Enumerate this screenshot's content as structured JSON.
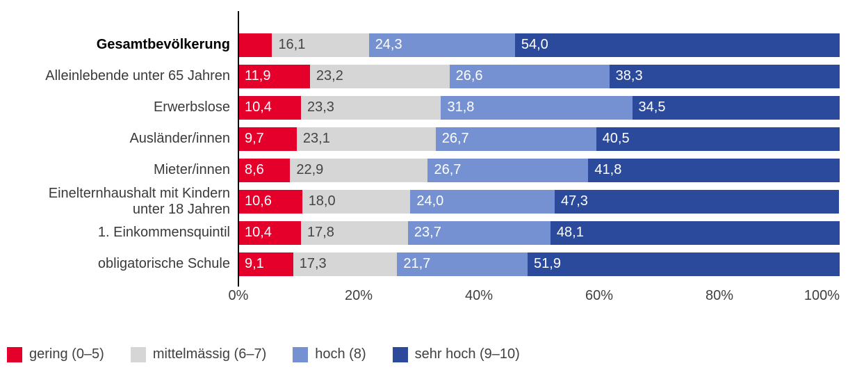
{
  "chart_data": {
    "type": "bar",
    "subtype": "horizontal-stacked-100",
    "title": "",
    "x_axis": {
      "min": 0,
      "max": 100,
      "ticks": [
        "0%",
        "20%",
        "40%",
        "60%",
        "80%",
        "100%"
      ]
    },
    "categories": [
      {
        "label": "Gesamtbevölkerung",
        "bold": true
      },
      {
        "label": "Alleinlebende unter 65 Jahren",
        "bold": false
      },
      {
        "label": "Erwerbslose",
        "bold": false
      },
      {
        "label": "Ausländer/innen",
        "bold": false
      },
      {
        "label": "Mieter/innen",
        "bold": false
      },
      {
        "label": "Einelternhaushalt mit Kindern\nunter 18 Jahren",
        "bold": false
      },
      {
        "label": "1. Einkommensquintil",
        "bold": false
      },
      {
        "label": "obligatorische Schule",
        "bold": false
      }
    ],
    "series": [
      {
        "key": "gering",
        "name": "gering (0–5)",
        "color": "#e4002b",
        "text_color": "#ffffff",
        "values": [
          5.6,
          11.9,
          10.4,
          9.7,
          8.6,
          10.6,
          10.4,
          9.1
        ],
        "labels": [
          "",
          "11,9",
          "10,4",
          "9,7",
          "8,6",
          "10,6",
          "10,4",
          "9,1"
        ]
      },
      {
        "key": "mittelmaessig",
        "name": "mittelmässig (6–7)",
        "color": "#d6d6d6",
        "text_color": "#444444",
        "values": [
          16.1,
          23.2,
          23.3,
          23.1,
          22.9,
          18.0,
          17.8,
          17.3
        ],
        "labels": [
          "16,1",
          "23,2",
          "23,3",
          "23,1",
          "22,9",
          "18,0",
          "17,8",
          "17,3"
        ]
      },
      {
        "key": "hoch",
        "name": "hoch (8)",
        "color": "#7591d2",
        "text_color": "#ffffff",
        "values": [
          24.3,
          26.6,
          31.8,
          26.7,
          26.7,
          24.0,
          23.7,
          21.7
        ],
        "labels": [
          "24,3",
          "26,6",
          "31,8",
          "26,7",
          "26,7",
          "24,0",
          "23,7",
          "21,7"
        ]
      },
      {
        "key": "sehr-hoch",
        "name": "sehr hoch (9–10)",
        "color": "#2b4a9b",
        "text_color": "#ffffff",
        "values": [
          54.0,
          38.3,
          34.5,
          40.5,
          41.8,
          47.3,
          48.1,
          51.9
        ],
        "labels": [
          "54,0",
          "38,3",
          "34,5",
          "40,5",
          "41,8",
          "47,3",
          "48,1",
          "51,9"
        ]
      }
    ],
    "legend_position": "bottom-left",
    "grid": false
  }
}
